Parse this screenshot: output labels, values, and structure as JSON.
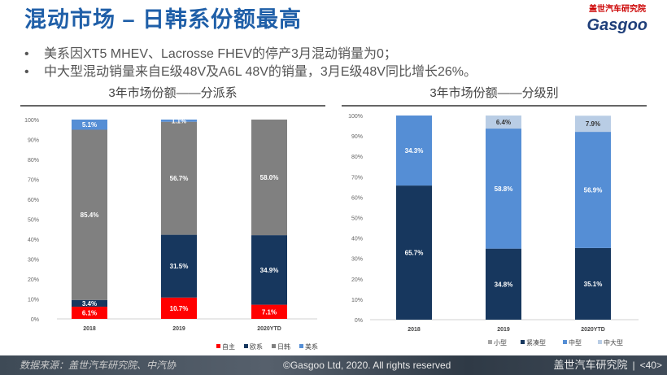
{
  "header": {
    "title": "混动市场 – 日韩系份额最高",
    "logo_cn": "盖世汽车研究院",
    "logo_en": "Gasgoo"
  },
  "bullets": [
    "美系因XT5 MHEV、Lacrosse FHEV的停产3月混动销量为0；",
    "中大型混动销量来自E级48V及A6L 48V的销量，3月E级48V同比增长26%。"
  ],
  "footer": {
    "source": "数据来源：盖世汽车研究院、中汽协",
    "copyright": "©Gasgoo Ltd, 2020. All rights reserved",
    "org": "盖世汽车研究院",
    "page": "<40>"
  },
  "chart_data": [
    {
      "type": "bar",
      "stacked": true,
      "title": "3年市场份额——分派系",
      "categories": [
        "2018",
        "2019",
        "2020YTD"
      ],
      "ylim": [
        0,
        100
      ],
      "yticks": [
        "0%",
        "10%",
        "20%",
        "30%",
        "40%",
        "50%",
        "60%",
        "70%",
        "80%",
        "90%",
        "100%"
      ],
      "series": [
        {
          "name": "自主",
          "color": "#ff0000",
          "values": [
            6.1,
            10.7,
            7.1
          ]
        },
        {
          "name": "欧系",
          "color": "#17375e",
          "values": [
            3.4,
            31.5,
            34.9
          ]
        },
        {
          "name": "日韩",
          "color": "#808080",
          "values": [
            85.4,
            56.7,
            58.0
          ]
        },
        {
          "name": "美系",
          "color": "#558ed5",
          "values": [
            5.1,
            1.1,
            0
          ]
        }
      ],
      "legend": "bottom-right"
    },
    {
      "type": "bar",
      "stacked": true,
      "title": "3年市场份额——分级别",
      "categories": [
        "2018",
        "2019",
        "2020YTD"
      ],
      "ylim": [
        0,
        100
      ],
      "yticks": [
        "0%",
        "10%",
        "20%",
        "30%",
        "40%",
        "50%",
        "60%",
        "70%",
        "80%",
        "90%",
        "100%"
      ],
      "series": [
        {
          "name": "小型",
          "color": "#a6a6a6",
          "values": [
            0,
            0,
            0
          ]
        },
        {
          "name": "紧凑型",
          "color": "#17375e",
          "values": [
            65.7,
            34.8,
            35.1
          ]
        },
        {
          "name": "中型",
          "color": "#558ed5",
          "values": [
            34.3,
            58.8,
            56.9
          ]
        },
        {
          "name": "中大型",
          "color": "#b9cde5",
          "values": [
            0,
            6.4,
            7.9
          ]
        }
      ],
      "legend": "bottom-right"
    }
  ]
}
